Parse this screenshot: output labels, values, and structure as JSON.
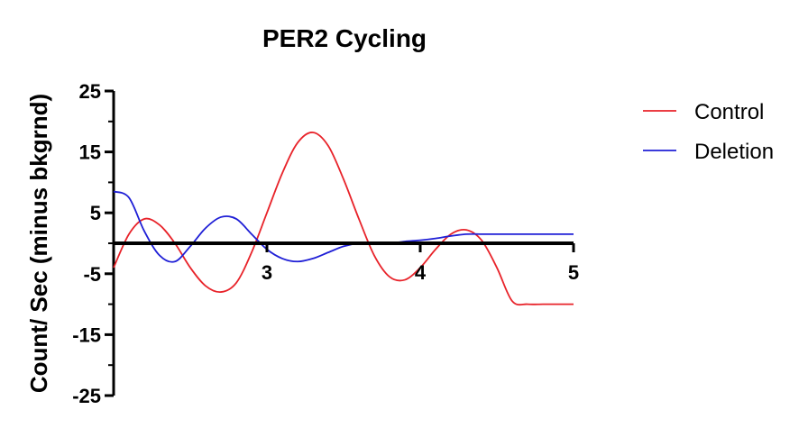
{
  "chart_data": {
    "type": "line",
    "title": "PER2 Cycling",
    "xlabel": "",
    "ylabel": "Count/ Sec (minus bkgrnd)",
    "xlim": [
      2,
      5
    ],
    "ylim": [
      -25,
      25
    ],
    "yticks": [
      25,
      15,
      5,
      -5,
      -15,
      -25
    ],
    "xticks": [
      3,
      4,
      5
    ],
    "grid": false,
    "legend_position": "top-right",
    "series": [
      {
        "name": "Control",
        "color": "#e8232a",
        "x": [
          2.0,
          2.1,
          2.2,
          2.3,
          2.4,
          2.5,
          2.6,
          2.7,
          2.8,
          2.9,
          3.0,
          3.1,
          3.2,
          3.3,
          3.4,
          3.5,
          3.6,
          3.7,
          3.8,
          3.9,
          4.0,
          4.1,
          4.2,
          4.3,
          4.4,
          4.5,
          4.6,
          4.7,
          4.8,
          4.9,
          5.0
        ],
        "y": [
          -4.0,
          1.5,
          4.0,
          3.0,
          0.0,
          -4.0,
          -7.0,
          -8.0,
          -6.5,
          -1.5,
          5.0,
          11.5,
          16.5,
          18.2,
          16.0,
          10.5,
          4.0,
          -2.0,
          -5.5,
          -6.0,
          -4.0,
          -1.0,
          1.5,
          2.2,
          0.5,
          -4.0,
          -9.5,
          -10.0,
          -10.0,
          -10.0,
          -10.0
        ]
      },
      {
        "name": "Deletion",
        "color": "#1f1fd6",
        "x": [
          2.0,
          2.1,
          2.2,
          2.3,
          2.4,
          2.5,
          2.6,
          2.7,
          2.8,
          2.9,
          3.0,
          3.1,
          3.2,
          3.3,
          3.4,
          3.5,
          3.6,
          3.7,
          3.8,
          3.9,
          4.0,
          4.1,
          4.2,
          4.3,
          4.4,
          4.5,
          4.6,
          4.7,
          4.8,
          4.9,
          5.0
        ],
        "y": [
          8.5,
          7.5,
          2.0,
          -2.0,
          -3.0,
          -0.5,
          2.5,
          4.3,
          4.0,
          1.5,
          -1.0,
          -2.5,
          -3.0,
          -2.5,
          -1.5,
          -0.5,
          0.0,
          0.0,
          0.0,
          0.3,
          0.5,
          0.8,
          1.2,
          1.5,
          1.5,
          1.5,
          1.5,
          1.5,
          1.5,
          1.5,
          1.5
        ]
      }
    ]
  }
}
